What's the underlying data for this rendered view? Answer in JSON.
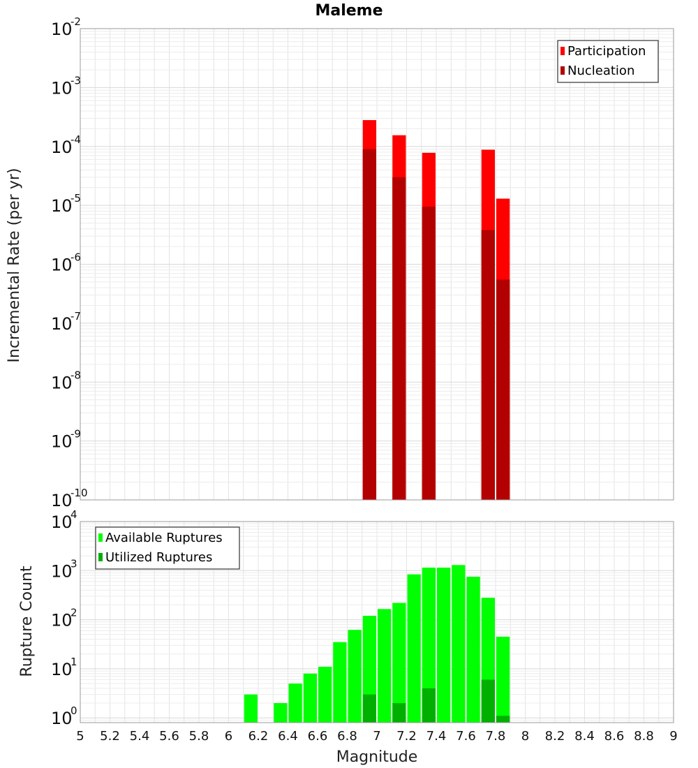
{
  "chart_data": [
    {
      "type": "bar",
      "title": "Maleme",
      "ylabel": "Incremental Rate (per yr)",
      "xlabel": "",
      "yscale": "log",
      "ylim": [
        1e-10,
        0.01
      ],
      "xlim": [
        5,
        9
      ],
      "grid": true,
      "legend_position": "top-right",
      "bin_width": 0.1,
      "series": [
        {
          "name": "Participation",
          "color": "#ff0000",
          "points": [
            [
              6.95,
              0.00028
            ],
            [
              7.15,
              0.000155
            ],
            [
              7.35,
              7.8e-05
            ],
            [
              7.75,
              8.8e-05
            ],
            [
              7.85,
              1.3e-05
            ]
          ]
        },
        {
          "name": "Nucleation",
          "color": "#b30000",
          "points": [
            [
              6.95,
              9e-05
            ],
            [
              7.15,
              3e-05
            ],
            [
              7.35,
              9.5e-06
            ],
            [
              7.75,
              3.8e-06
            ],
            [
              7.85,
              5.5e-07
            ]
          ]
        }
      ]
    },
    {
      "type": "bar",
      "title": "",
      "ylabel": "Rupture Count",
      "xlabel": "Magnitude",
      "yscale": "log",
      "ylim": [
        0.8,
        10000
      ],
      "xlim": [
        5,
        9
      ],
      "xticks": [
        "5",
        "5.2",
        "5.4",
        "5.6",
        "5.8",
        "6",
        "6.2",
        "6.4",
        "6.6",
        "6.8",
        "7",
        "7.2",
        "7.4",
        "7.6",
        "7.8",
        "8",
        "8.2",
        "8.4",
        "8.6",
        "8.8",
        "9"
      ],
      "grid": true,
      "legend_position": "top-left",
      "bin_width": 0.1,
      "series": [
        {
          "name": "Available Ruptures",
          "color": "#00ff00",
          "points": [
            [
              6.15,
              3
            ],
            [
              6.35,
              2
            ],
            [
              6.45,
              5
            ],
            [
              6.55,
              8
            ],
            [
              6.65,
              11
            ],
            [
              6.75,
              35
            ],
            [
              6.85,
              62
            ],
            [
              6.95,
              120
            ],
            [
              7.05,
              165
            ],
            [
              7.15,
              220
            ],
            [
              7.25,
              840
            ],
            [
              7.35,
              1150
            ],
            [
              7.45,
              1150
            ],
            [
              7.55,
              1300
            ],
            [
              7.65,
              750
            ],
            [
              7.75,
              280
            ],
            [
              7.85,
              45
            ]
          ]
        },
        {
          "name": "Utilized Ruptures",
          "color": "#00b000",
          "points": [
            [
              6.95,
              3
            ],
            [
              7.15,
              2
            ],
            [
              7.35,
              4
            ],
            [
              7.75,
              6
            ],
            [
              7.85,
              1.1
            ]
          ]
        }
      ]
    }
  ]
}
